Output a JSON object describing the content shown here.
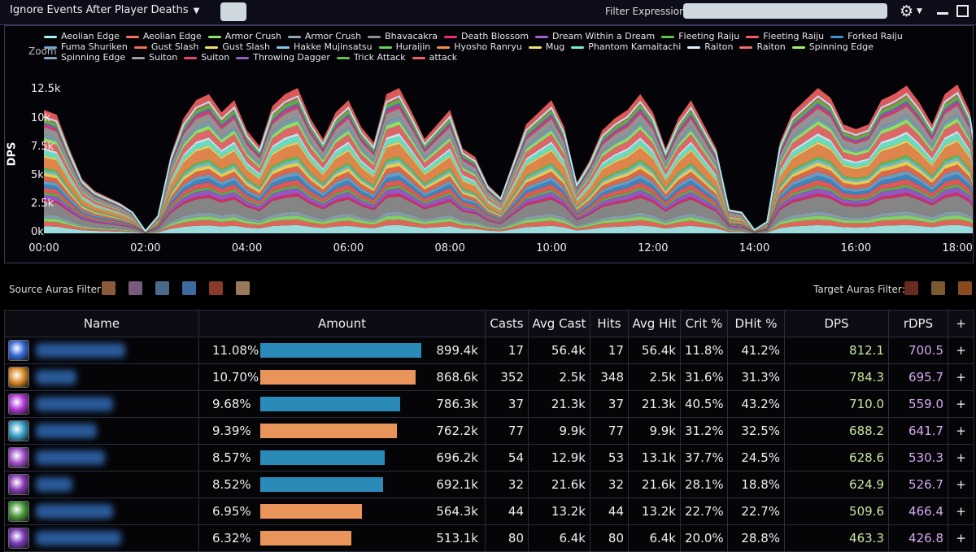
{
  "toolbar": {
    "ignore_dropdown": "Ignore Events After Player Deaths",
    "filter_label": "Filter Expression:",
    "filter_value": ""
  },
  "chart_data": {
    "type": "area",
    "stacked": true,
    "zoom_label": "Zoom",
    "ylabel": "DPS",
    "y_ticks": [
      "0k",
      "2.5k",
      "5k",
      "7.5k",
      "10k",
      "12.5k"
    ],
    "ylim": [
      0,
      12500
    ],
    "x_ticks": [
      "00:00",
      "02:00",
      "04:00",
      "06:00",
      "08:00",
      "10:00",
      "12:00",
      "14:00",
      "16:00",
      "18:00"
    ],
    "legend_position": "top",
    "legend": [
      {
        "name": "Aeolian Edge",
        "color": "#a8f0f0"
      },
      {
        "name": "Aeolian Edge",
        "color": "#f07060"
      },
      {
        "name": "Armor Crush",
        "color": "#90e070"
      },
      {
        "name": "Armor Crush",
        "color": "#90a8b8"
      },
      {
        "name": "Bhavacakra",
        "color": "#909090"
      },
      {
        "name": "Death Blossom",
        "color": "#e8306a"
      },
      {
        "name": "Dream Within a Dream",
        "color": "#a060d0"
      },
      {
        "name": "Fleeting Raiju",
        "color": "#60c050"
      },
      {
        "name": "Fleeting Raiju",
        "color": "#f06060"
      },
      {
        "name": "Forked Raiju",
        "color": "#4090d0"
      },
      {
        "name": "Fuma Shuriken",
        "color": "#70a8d0"
      },
      {
        "name": "Gust Slash",
        "color": "#f07050"
      },
      {
        "name": "Gust Slash",
        "color": "#f0e060"
      },
      {
        "name": "Hakke Mujinsatsu",
        "color": "#80c8e8"
      },
      {
        "name": "Huraijin",
        "color": "#60d060"
      },
      {
        "name": "Hyosho Ranryu",
        "color": "#f09050"
      },
      {
        "name": "Mug",
        "color": "#f0e070"
      },
      {
        "name": "Phantom Kamaitachi",
        "color": "#70f0d0"
      },
      {
        "name": "Raiton",
        "color": "#e0f0ff"
      },
      {
        "name": "Raiton",
        "color": "#f07070"
      },
      {
        "name": "Spinning Edge",
        "color": "#a0f070"
      },
      {
        "name": "Spinning Edge",
        "color": "#80a8c0"
      },
      {
        "name": "Suiton",
        "color": "#a0a0a0"
      },
      {
        "name": "Suiton",
        "color": "#f04070"
      },
      {
        "name": "Throwing Dagger",
        "color": "#9060c0"
      },
      {
        "name": "Trick Attack",
        "color": "#60c050"
      },
      {
        "name": "attack",
        "color": "#f06060"
      }
    ],
    "x_minutes": [
      0,
      0.25,
      0.5,
      0.75,
      1,
      1.25,
      1.5,
      1.75,
      2,
      2.25,
      2.5,
      2.75,
      3,
      3.25,
      3.5,
      3.75,
      4,
      4.25,
      4.5,
      4.75,
      5,
      5.25,
      5.5,
      5.75,
      6,
      6.25,
      6.5,
      6.75,
      7,
      7.25,
      7.5,
      7.75,
      8,
      8.25,
      8.5,
      8.75,
      9,
      9.25,
      9.5,
      9.75,
      10,
      10.25,
      10.5,
      10.75,
      11,
      11.25,
      11.5,
      11.75,
      12,
      12.25,
      12.5,
      12.75,
      13,
      13.25,
      13.5,
      13.75,
      14,
      14.25,
      14.5,
      14.75,
      15,
      15.25,
      15.5,
      15.75,
      16,
      16.25,
      16.5,
      16.75,
      17,
      17.25,
      17.5,
      17.75,
      18,
      18.25,
      18.5
    ],
    "total_dps": [
      10200,
      9800,
      7000,
      4500,
      3500,
      3000,
      2500,
      1800,
      200,
      1500,
      6500,
      9500,
      11000,
      11500,
      10000,
      11000,
      8500,
      7200,
      10500,
      11500,
      12000,
      9500,
      7800,
      10000,
      11000,
      8800,
      7500,
      11500,
      12000,
      10000,
      7800,
      9000,
      10200,
      7000,
      6300,
      4000,
      3000,
      6000,
      9000,
      10000,
      11000,
      8800,
      4200,
      6000,
      8500,
      9500,
      10200,
      11500,
      10000,
      7000,
      9500,
      11000,
      9000,
      7000,
      2000,
      1800,
      300,
      1000,
      7500,
      10000,
      11000,
      12000,
      11200,
      9000,
      8600,
      9000,
      11000,
      11500,
      12200,
      10800,
      9000,
      11500,
      12300,
      10000,
      2500
    ],
    "series_fractions": {
      "Aeolian Edge (1)": 0.06,
      "Aeolian Edge (2)": 0.04,
      "Armor Crush (1)": 0.03,
      "Armor Crush (2)": 0.03,
      "Bhavacakra": 0.11,
      "Death Blossom": 0.02,
      "Dream Within a Dream": 0.04,
      "Fleeting Raiju (1)": 0.02,
      "Fleeting Raiju (2)": 0.04,
      "Forked Raiju": 0.03,
      "Fuma Shuriken": 0.03,
      "Gust Slash (1)": 0.04,
      "Gust Slash (2)": 0.03,
      "Hakke Mujinsatsu": 0.02,
      "Huraijin": 0.02,
      "Hyosho Ranryu": 0.09,
      "Mug": 0.02,
      "Phantom Kamaitachi": 0.04,
      "Raiton (1)": 0.02,
      "Raiton (2)": 0.06,
      "Spinning Edge (1)": 0.03,
      "Spinning Edge (2)": 0.03,
      "Suiton (1)": 0.06,
      "Suiton (2)": 0.02,
      "Throwing Dagger": 0.02,
      "Trick Attack": 0.03,
      "attack": 0.08
    }
  },
  "auras": {
    "source_label": "Source Auras Filter:",
    "target_label": "Target Auras Filter:",
    "source_icons": [
      {
        "name": "source-aura-1-icon",
        "color": "#8a5a3a"
      },
      {
        "name": "source-aura-2-icon",
        "color": "#7a5a7a"
      },
      {
        "name": "source-aura-3-icon",
        "color": "#4a6a8a"
      },
      {
        "name": "source-aura-4-icon",
        "color": "#3a6aa0"
      },
      {
        "name": "source-aura-5-icon",
        "color": "#8a3a2a"
      },
      {
        "name": "source-aura-6-icon",
        "color": "#9a7a5a"
      }
    ],
    "target_icons": [
      {
        "name": "target-aura-1-icon",
        "color": "#6a2a20"
      },
      {
        "name": "target-aura-2-icon",
        "color": "#7a5a30"
      },
      {
        "name": "target-aura-3-icon",
        "color": "#8a4a20"
      }
    ]
  },
  "table": {
    "headers": [
      "Name",
      "Amount",
      "Casts",
      "Avg Cast",
      "Hits",
      "Avg Hit",
      "Crit %",
      "DHit %",
      "DPS",
      "rDPS",
      "+"
    ],
    "rows": [
      {
        "icon_color": "#3a6ad8",
        "name_color": "#2a5a9a",
        "name_width": 110,
        "pct": "11.08%",
        "bar": 0.92,
        "bar_color": "#2a8ab8",
        "amount": "899.4k",
        "casts": "17",
        "avg_cast": "56.4k",
        "hits": "17",
        "avg_hit": "56.4k",
        "crit": "11.8%",
        "dhit": "41.2%",
        "dps": "812.1",
        "rdps": "700.5",
        "plus": "+"
      },
      {
        "icon_color": "#d88a2a",
        "name_color": "#2a5a9a",
        "name_width": 50,
        "pct": "10.70%",
        "bar": 0.89,
        "bar_color": "#e8945a",
        "amount": "868.6k",
        "casts": "352",
        "avg_cast": "2.5k",
        "hits": "348",
        "avg_hit": "2.5k",
        "crit": "31.6%",
        "dhit": "31.3%",
        "dps": "784.3",
        "rdps": "695.7",
        "plus": "+"
      },
      {
        "icon_color": "#b03ad8",
        "name_color": "#2a5a9a",
        "name_width": 95,
        "pct": "9.68%",
        "bar": 0.8,
        "bar_color": "#2a8ab8",
        "amount": "786.3k",
        "casts": "37",
        "avg_cast": "21.3k",
        "hits": "37",
        "avg_hit": "21.3k",
        "crit": "40.5%",
        "dhit": "43.2%",
        "dps": "710.0",
        "rdps": "559.0",
        "plus": "+"
      },
      {
        "icon_color": "#3aa0c8",
        "name_color": "#2a5a9a",
        "name_width": 75,
        "pct": "9.39%",
        "bar": 0.78,
        "bar_color": "#e8945a",
        "amount": "762.2k",
        "casts": "77",
        "avg_cast": "9.9k",
        "hits": "77",
        "avg_hit": "9.9k",
        "crit": "31.2%",
        "dhit": "32.5%",
        "dps": "688.2",
        "rdps": "641.7",
        "plus": "+"
      },
      {
        "icon_color": "#a050c8",
        "name_color": "#2a5a9a",
        "name_width": 85,
        "pct": "8.57%",
        "bar": 0.71,
        "bar_color": "#2a8ab8",
        "amount": "696.2k",
        "casts": "54",
        "avg_cast": "12.9k",
        "hits": "53",
        "avg_hit": "13.1k",
        "crit": "37.7%",
        "dhit": "24.5%",
        "dps": "628.6",
        "rdps": "530.3",
        "plus": "+"
      },
      {
        "icon_color": "#8a3ab8",
        "name_color": "#2a5a9a",
        "name_width": 45,
        "pct": "8.52%",
        "bar": 0.7,
        "bar_color": "#2a8ab8",
        "amount": "692.1k",
        "casts": "32",
        "avg_cast": "21.6k",
        "hits": "32",
        "avg_hit": "21.6k",
        "crit": "28.1%",
        "dhit": "18.8%",
        "dps": "624.9",
        "rdps": "526.7",
        "plus": "+"
      },
      {
        "icon_color": "#4a9a3a",
        "name_color": "#2a5a9a",
        "name_width": 95,
        "pct": "6.95%",
        "bar": 0.58,
        "bar_color": "#e8945a",
        "amount": "564.3k",
        "casts": "44",
        "avg_cast": "13.2k",
        "hits": "44",
        "avg_hit": "13.2k",
        "crit": "22.7%",
        "dhit": "22.7%",
        "dps": "509.6",
        "rdps": "466.4",
        "plus": "+"
      },
      {
        "icon_color": "#7a3ab8",
        "name_color": "#2a5a9a",
        "name_width": 105,
        "pct": "6.32%",
        "bar": 0.52,
        "bar_color": "#e8945a",
        "amount": "513.1k",
        "casts": "80",
        "avg_cast": "6.4k",
        "hits": "80",
        "avg_hit": "6.4k",
        "crit": "20.0%",
        "dhit": "28.8%",
        "dps": "463.3",
        "rdps": "426.8",
        "plus": "+"
      }
    ]
  }
}
